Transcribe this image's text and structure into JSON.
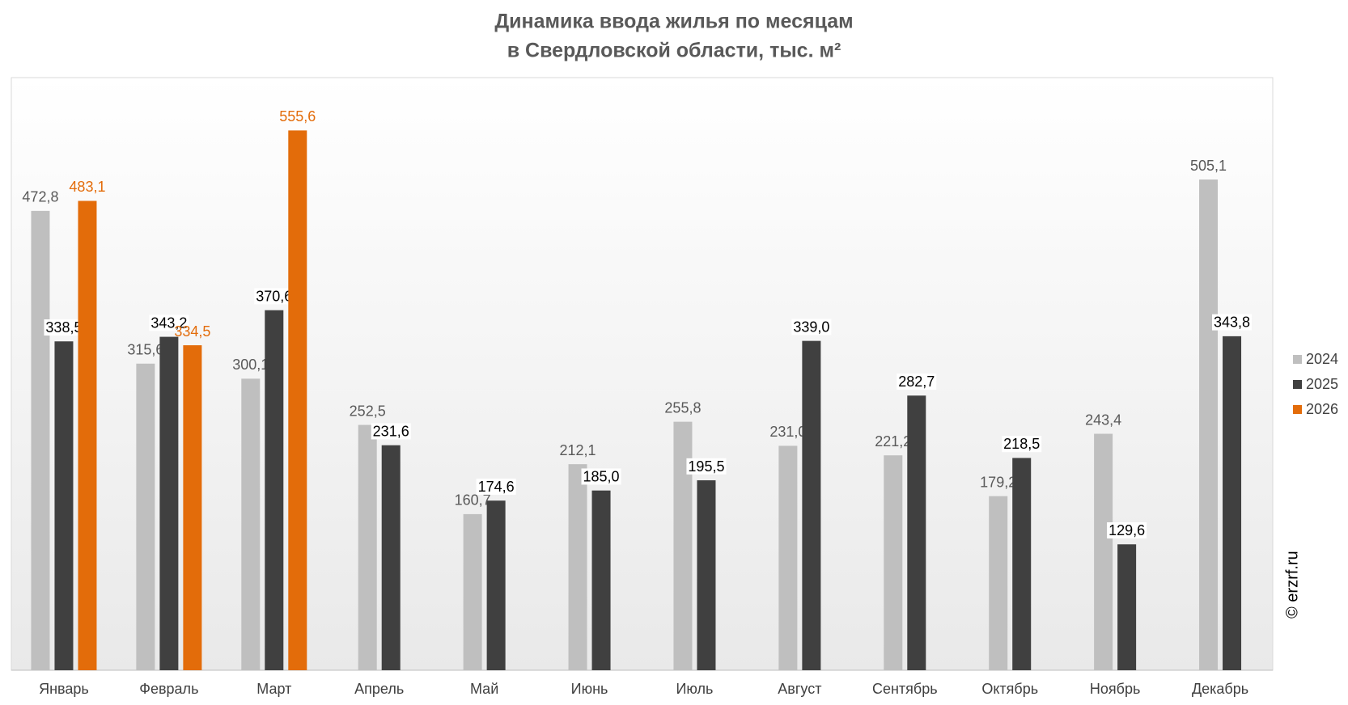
{
  "chart_data": {
    "type": "bar",
    "title": "Динамика ввода жилья по месяцам",
    "subtitle": "в Свердловской области, тыс. м²",
    "watermark": "© erzrf.ru",
    "categories": [
      "Январь",
      "Февраль",
      "Март",
      "Апрель",
      "Май",
      "Июнь",
      "Июль",
      "Август",
      "Сентябрь",
      "Октябрь",
      "Ноябрь",
      "Декабрь"
    ],
    "series": [
      {
        "name": "2024",
        "color": "#bfbfbf",
        "label_color": "#595959",
        "values": [
          472.8,
          315.6,
          300.1,
          252.5,
          160.7,
          212.1,
          255.8,
          231.0,
          221.2,
          179.2,
          243.4,
          505.1
        ],
        "value_labels": [
          "472,8",
          "315,6",
          "300,1",
          "252,5",
          "160,7",
          "212,1",
          "255,8",
          "231,0",
          "221,2",
          "179,2",
          "243,4",
          "505,1"
        ]
      },
      {
        "name": "2025",
        "color": "#404040",
        "label_color": "#000000",
        "values": [
          338.5,
          343.2,
          370.6,
          231.6,
          174.6,
          185.0,
          195.5,
          339.0,
          282.7,
          218.5,
          129.6,
          343.8
        ],
        "value_labels": [
          "338,5",
          "343,2",
          "370,6",
          "231,6",
          "174,6",
          "185,0",
          "195,5",
          "339,0",
          "282,7",
          "218,5",
          "129,6",
          "343,8"
        ]
      },
      {
        "name": "2026",
        "color": "#e36c0a",
        "label_color": "#e36c0a",
        "values": [
          483.1,
          334.5,
          555.6,
          null,
          null,
          null,
          null,
          null,
          null,
          null,
          null,
          null
        ],
        "value_labels": [
          "483,1",
          "334,5",
          "555,6",
          null,
          null,
          null,
          null,
          null,
          null,
          null,
          null,
          null
        ]
      }
    ],
    "ylim": [
      0,
      610
    ],
    "legend": "right"
  }
}
